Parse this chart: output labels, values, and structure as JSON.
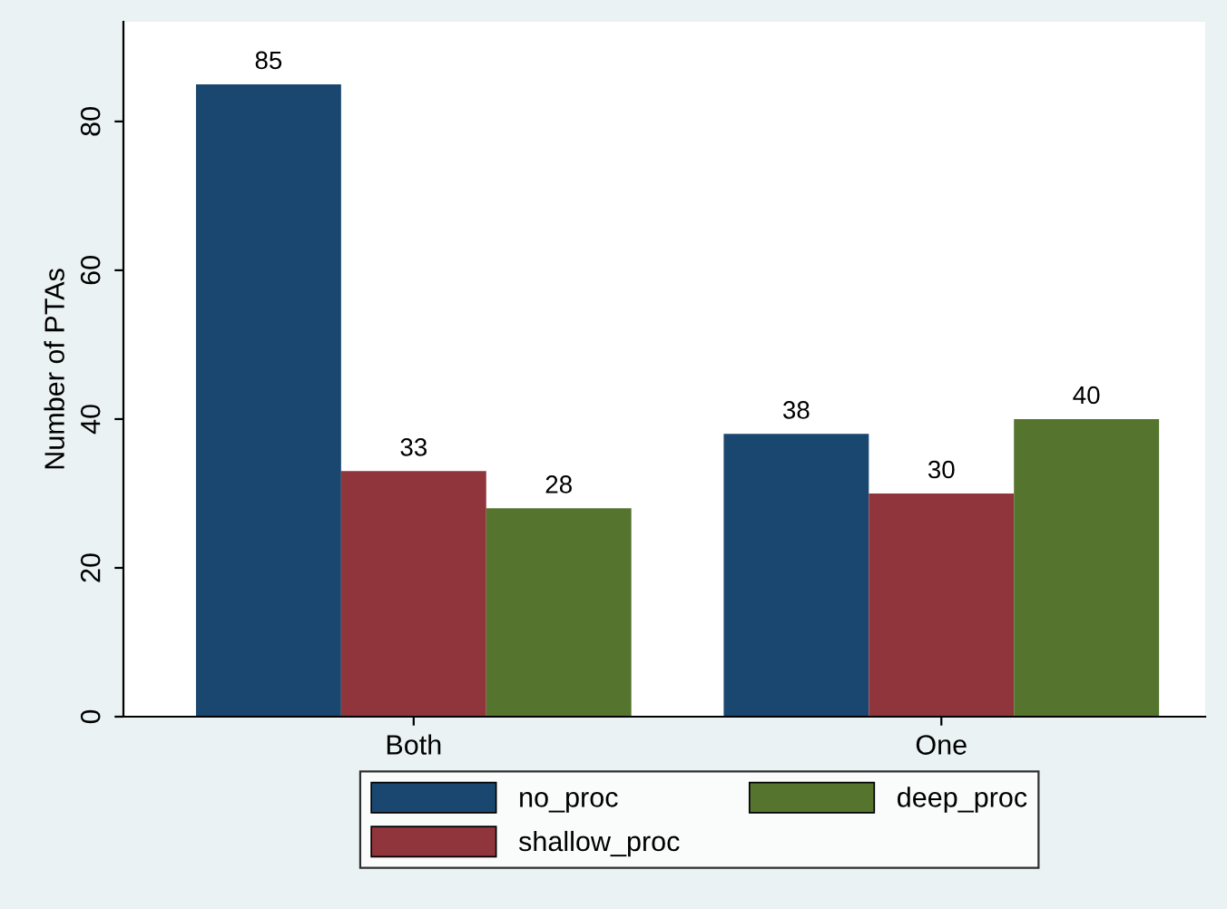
{
  "chart_data": {
    "type": "bar",
    "ylabel": "Number of PTAs",
    "categories": [
      "Both",
      "One"
    ],
    "series": [
      {
        "name": "no_proc",
        "color": "#1a476f",
        "values": [
          85,
          38
        ]
      },
      {
        "name": "shallow_proc",
        "color": "#90353b",
        "values": [
          33,
          30
        ]
      },
      {
        "name": "deep_proc",
        "color": "#55752f",
        "values": [
          28,
          40
        ]
      }
    ],
    "ylim": [
      0,
      93.4
    ],
    "yticks": [
      0,
      20,
      40,
      60,
      80
    ],
    "data_labels": true,
    "legend": "bottom",
    "grid": false
  }
}
